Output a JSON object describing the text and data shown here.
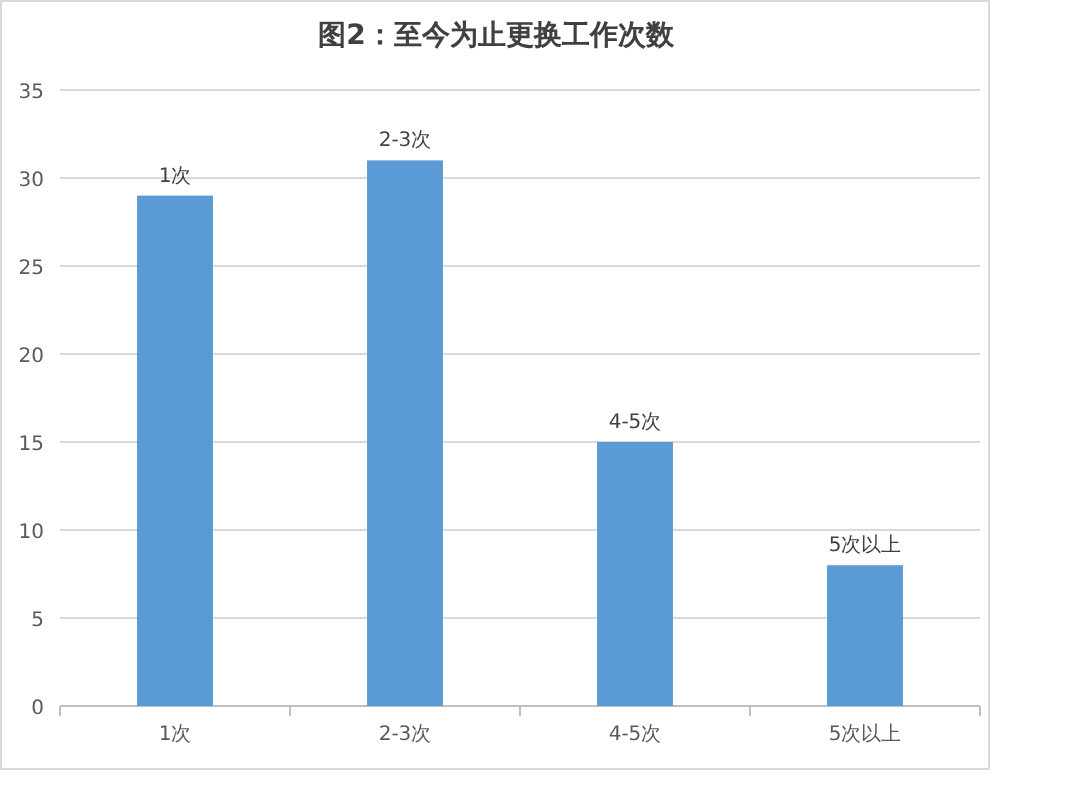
{
  "chart_data": {
    "type": "bar",
    "title": "图2：至今为止更换工作次数",
    "categories": [
      "1次",
      "2-3次",
      "4-5次",
      "5次以上"
    ],
    "values": [
      29,
      31,
      15,
      8
    ],
    "annotations": [
      {
        "text": "1次",
        "x": "1次",
        "y": 29
      },
      {
        "text": "2-3次",
        "x": "2-3次",
        "y": 31
      },
      {
        "text": "4-5次",
        "x": "4-5次",
        "y": 15
      },
      {
        "text": "5次以上",
        "x": "5次以上",
        "y": 8
      }
    ],
    "color": "#5b9bd5",
    "ylim": [
      0,
      35
    ],
    "yticks": [
      0,
      5,
      10,
      15,
      20,
      25,
      30,
      35
    ],
    "grid": "y"
  }
}
